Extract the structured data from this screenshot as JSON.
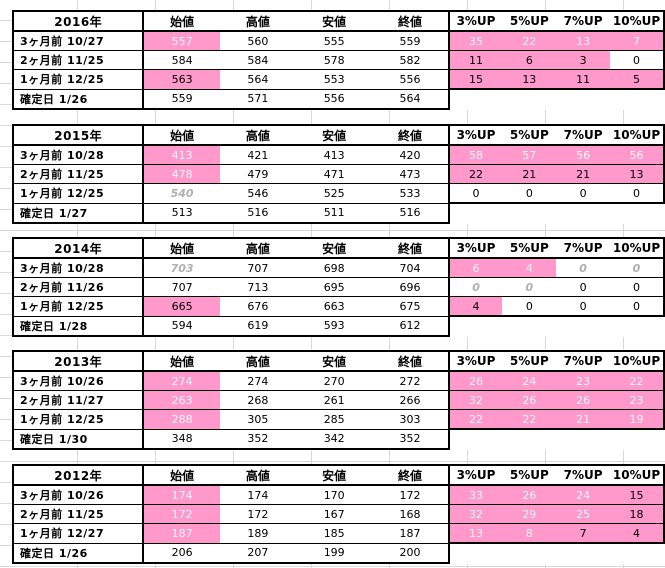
{
  "headers": [
    "始値",
    "高値",
    "安値",
    "終値",
    "3%UP",
    "5%UP",
    "7%UP",
    "10%UP"
  ],
  "colors": {
    "highlight": "#ff99cc",
    "highlight_text": "#f7f7f7",
    "muted_text": "#b0b0b0"
  },
  "blocks": [
    {
      "year": "2016年",
      "rows": [
        {
          "label": "3ヶ月前 10/27",
          "values": [
            "557",
            "560",
            "555",
            "559",
            "35",
            "22",
            "13",
            "7"
          ]
        },
        {
          "label": "2ヶ月前 11/25",
          "values": [
            "584",
            "584",
            "578",
            "582",
            "11",
            "6",
            "3",
            "0"
          ]
        },
        {
          "label": "1ヶ月前 12/25",
          "values": [
            "563",
            "564",
            "553",
            "556",
            "15",
            "13",
            "11",
            "5"
          ]
        },
        {
          "label": "確定日 1/26",
          "values": [
            "559",
            "571",
            "556",
            "564"
          ]
        }
      ]
    },
    {
      "year": "2015年",
      "rows": [
        {
          "label": "3ヶ月前 10/28",
          "values": [
            "413",
            "421",
            "413",
            "420",
            "58",
            "57",
            "56",
            "56"
          ]
        },
        {
          "label": "2ヶ月前 11/25",
          "values": [
            "478",
            "479",
            "471",
            "473",
            "22",
            "21",
            "21",
            "13"
          ]
        },
        {
          "label": "1ヶ月前 12/25",
          "values": [
            "540",
            "546",
            "525",
            "533",
            "0",
            "0",
            "0",
            "0"
          ]
        },
        {
          "label": "確定日 1/27",
          "values": [
            "513",
            "516",
            "511",
            "516"
          ]
        }
      ]
    },
    {
      "year": "2014年",
      "rows": [
        {
          "label": "3ヶ月前 10/28",
          "values": [
            "703",
            "707",
            "698",
            "704",
            "6",
            "4",
            "0",
            "0"
          ]
        },
        {
          "label": "2ヶ月前 11/26",
          "values": [
            "707",
            "713",
            "695",
            "696",
            "0",
            "0",
            "0",
            "0"
          ]
        },
        {
          "label": "1ヶ月前 12/25",
          "values": [
            "665",
            "676",
            "663",
            "675",
            "4",
            "0",
            "0",
            "0"
          ]
        },
        {
          "label": "確定日 1/28",
          "values": [
            "594",
            "619",
            "593",
            "612"
          ]
        }
      ]
    },
    {
      "year": "2013年",
      "rows": [
        {
          "label": "3ヶ月前 10/26",
          "values": [
            "274",
            "274",
            "270",
            "272",
            "26",
            "24",
            "23",
            "22"
          ]
        },
        {
          "label": "2ヶ月前 11/27",
          "values": [
            "263",
            "268",
            "261",
            "266",
            "32",
            "26",
            "26",
            "23"
          ]
        },
        {
          "label": "1ヶ月前 12/25",
          "values": [
            "288",
            "305",
            "285",
            "303",
            "22",
            "22",
            "21",
            "19"
          ]
        },
        {
          "label": "確定日 1/30",
          "values": [
            "348",
            "352",
            "342",
            "352"
          ]
        }
      ]
    },
    {
      "year": "2012年",
      "rows": [
        {
          "label": "3ヶ月前 10/26",
          "values": [
            "174",
            "174",
            "170",
            "172",
            "33",
            "26",
            "24",
            "15"
          ]
        },
        {
          "label": "2ヶ月前 11/25",
          "values": [
            "172",
            "172",
            "167",
            "168",
            "32",
            "29",
            "25",
            "18"
          ]
        },
        {
          "label": "1ヶ月前 12/27",
          "values": [
            "187",
            "189",
            "185",
            "187",
            "13",
            "8",
            "7",
            "4"
          ]
        },
        {
          "label": "確定日 1/26",
          "values": [
            "206",
            "207",
            "199",
            "200"
          ]
        }
      ]
    }
  ]
}
